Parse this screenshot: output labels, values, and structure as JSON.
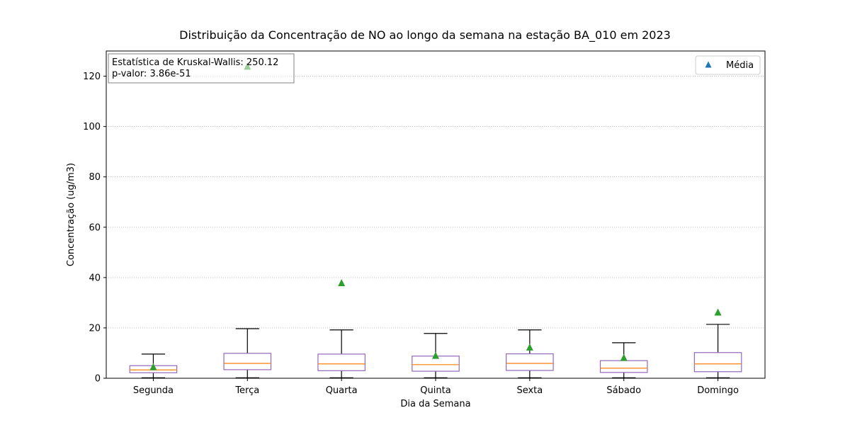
{
  "chart_data": {
    "type": "box",
    "title": "Distribuição da Concentração de NO ao longo da semana na estação BA_010 em 2023",
    "xlabel": "Dia da Semana",
    "ylabel": "Concentração (ug/m3)",
    "ylim": [
      0,
      130
    ],
    "yticks": [
      0,
      20,
      40,
      60,
      80,
      100,
      120
    ],
    "grid": "y-dotted",
    "categories": [
      "Segunda",
      "Terça",
      "Quarta",
      "Quinta",
      "Sexta",
      "Sábado",
      "Domingo"
    ],
    "boxes": [
      {
        "whislo": 0.2,
        "q1": 2.2,
        "med": 3.3,
        "q3": 5.0,
        "whishi": 9.6,
        "mean": 4.6
      },
      {
        "whislo": 0.2,
        "q1": 3.4,
        "med": 5.9,
        "q3": 9.9,
        "whishi": 19.7,
        "mean": 124.0
      },
      {
        "whislo": 0.2,
        "q1": 3.0,
        "med": 5.7,
        "q3": 9.6,
        "whishi": 19.2,
        "mean": 38.0
      },
      {
        "whislo": 0.2,
        "q1": 2.8,
        "med": 5.4,
        "q3": 8.8,
        "whishi": 17.8,
        "mean": 9.1
      },
      {
        "whislo": 0.2,
        "q1": 3.1,
        "med": 5.9,
        "q3": 9.7,
        "whishi": 19.2,
        "mean": 12.4
      },
      {
        "whislo": 0.2,
        "q1": 2.3,
        "med": 4.0,
        "q3": 7.0,
        "whishi": 14.1,
        "mean": 8.3
      },
      {
        "whislo": 0.2,
        "q1": 2.6,
        "med": 5.7,
        "q3": 10.2,
        "whishi": 21.4,
        "mean": 26.3
      }
    ],
    "annotation": {
      "line1": "Estatística de Kruskal-Wallis: 250.12",
      "line2": "p-valor: 3.86e-51"
    },
    "legend": {
      "label": "Média",
      "position": "top-right"
    },
    "colors": {
      "box": "#9467bd",
      "median": "#ff7f0e",
      "whisker": "#000000",
      "mean_marker": "#2ca02c",
      "legend_marker": "#1f77b4",
      "grid": "#b0b0b0"
    }
  }
}
